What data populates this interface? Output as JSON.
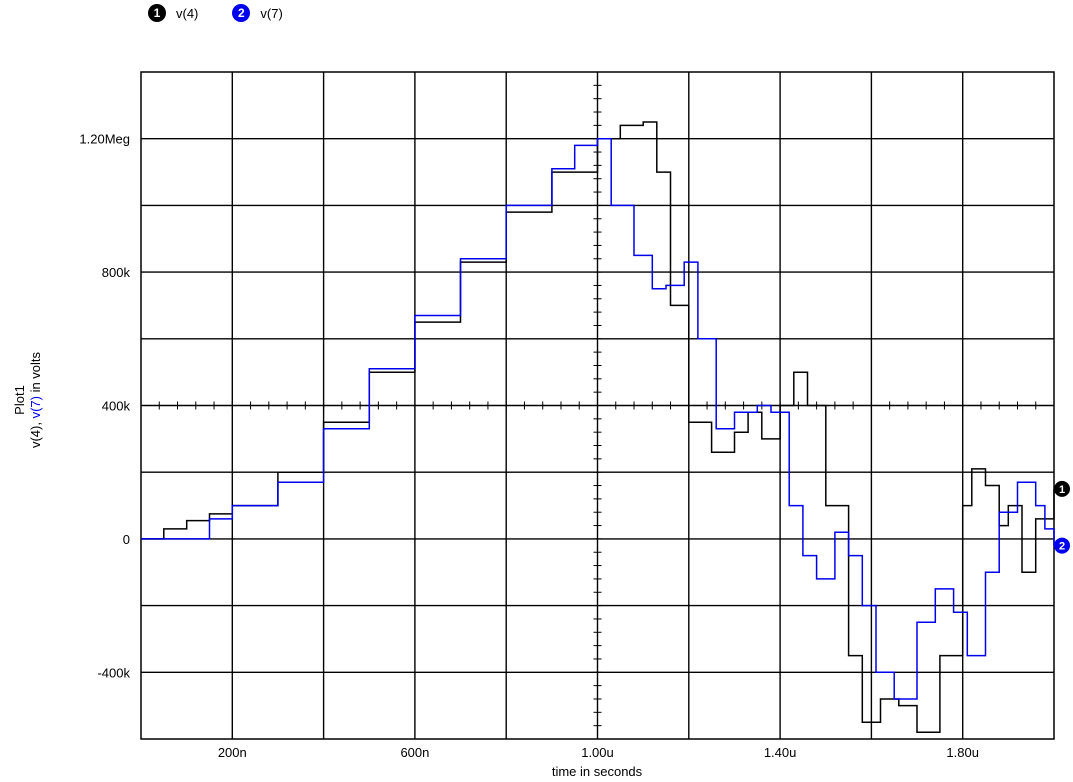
{
  "chart_data": {
    "type": "line",
    "title": "",
    "plot_name": "Plot1",
    "ylabel_parts": [
      "v(4)",
      ", ",
      "v(7)",
      " in volts"
    ],
    "xlabel": "time in seconds",
    "xlim": [
      0,
      2.0
    ],
    "ylim": [
      -600000,
      1400000
    ],
    "x_ticks": [
      {
        "v": 0.2,
        "label": "200n"
      },
      {
        "v": 0.6,
        "label": "600n"
      },
      {
        "v": 1.0,
        "label": "1.00u"
      },
      {
        "v": 1.4,
        "label": "1.40u"
      },
      {
        "v": 1.8,
        "label": "1.80u"
      }
    ],
    "y_ticks": [
      {
        "v": 1200000,
        "label": "1.20Meg"
      },
      {
        "v": 800000,
        "label": "800k"
      },
      {
        "v": 400000,
        "label": "400k"
      },
      {
        "v": 0,
        "label": "0"
      },
      {
        "v": -400000,
        "label": "-400k"
      }
    ],
    "grid": true,
    "legend_position": "top-left",
    "series": [
      {
        "name": "v(4)",
        "marker": "1",
        "color": "#000000",
        "points": [
          [
            0.0,
            0
          ],
          [
            0.05,
            30000
          ],
          [
            0.1,
            55000
          ],
          [
            0.15,
            75000
          ],
          [
            0.2,
            100000
          ],
          [
            0.3,
            200000
          ],
          [
            0.4,
            350000
          ],
          [
            0.5,
            500000
          ],
          [
            0.6,
            650000
          ],
          [
            0.7,
            830000
          ],
          [
            0.8,
            980000
          ],
          [
            0.9,
            1100000
          ],
          [
            1.0,
            1200000
          ],
          [
            1.05,
            1240000
          ],
          [
            1.1,
            1250000
          ],
          [
            1.13,
            1100000
          ],
          [
            1.16,
            700000
          ],
          [
            1.2,
            350000
          ],
          [
            1.25,
            260000
          ],
          [
            1.3,
            320000
          ],
          [
            1.33,
            380000
          ],
          [
            1.36,
            300000
          ],
          [
            1.4,
            400000
          ],
          [
            1.43,
            500000
          ],
          [
            1.46,
            400000
          ],
          [
            1.5,
            100000
          ],
          [
            1.55,
            -350000
          ],
          [
            1.58,
            -550000
          ],
          [
            1.62,
            -480000
          ],
          [
            1.66,
            -500000
          ],
          [
            1.7,
            -580000
          ],
          [
            1.75,
            -350000
          ],
          [
            1.8,
            100000
          ],
          [
            1.82,
            210000
          ],
          [
            1.85,
            160000
          ],
          [
            1.88,
            40000
          ],
          [
            1.9,
            100000
          ],
          [
            1.93,
            -100000
          ],
          [
            1.96,
            60000
          ],
          [
            2.0,
            150000
          ]
        ]
      },
      {
        "name": "v(7)",
        "marker": "2",
        "color": "#0000ee",
        "points": [
          [
            0.0,
            0
          ],
          [
            0.1,
            0
          ],
          [
            0.15,
            60000
          ],
          [
            0.2,
            100000
          ],
          [
            0.3,
            170000
          ],
          [
            0.4,
            330000
          ],
          [
            0.5,
            510000
          ],
          [
            0.6,
            670000
          ],
          [
            0.7,
            840000
          ],
          [
            0.8,
            1000000
          ],
          [
            0.9,
            1110000
          ],
          [
            0.95,
            1180000
          ],
          [
            1.0,
            1200000
          ],
          [
            1.03,
            1000000
          ],
          [
            1.08,
            850000
          ],
          [
            1.12,
            750000
          ],
          [
            1.15,
            760000
          ],
          [
            1.19,
            830000
          ],
          [
            1.22,
            600000
          ],
          [
            1.26,
            330000
          ],
          [
            1.3,
            380000
          ],
          [
            1.35,
            400000
          ],
          [
            1.38,
            380000
          ],
          [
            1.42,
            100000
          ],
          [
            1.45,
            -50000
          ],
          [
            1.48,
            -120000
          ],
          [
            1.52,
            20000
          ],
          [
            1.55,
            -50000
          ],
          [
            1.58,
            -200000
          ],
          [
            1.61,
            -400000
          ],
          [
            1.65,
            -480000
          ],
          [
            1.7,
            -250000
          ],
          [
            1.74,
            -150000
          ],
          [
            1.78,
            -220000
          ],
          [
            1.81,
            -350000
          ],
          [
            1.85,
            -100000
          ],
          [
            1.88,
            80000
          ],
          [
            1.92,
            170000
          ],
          [
            1.96,
            100000
          ],
          [
            1.98,
            30000
          ],
          [
            2.0,
            -20000
          ]
        ]
      }
    ]
  }
}
